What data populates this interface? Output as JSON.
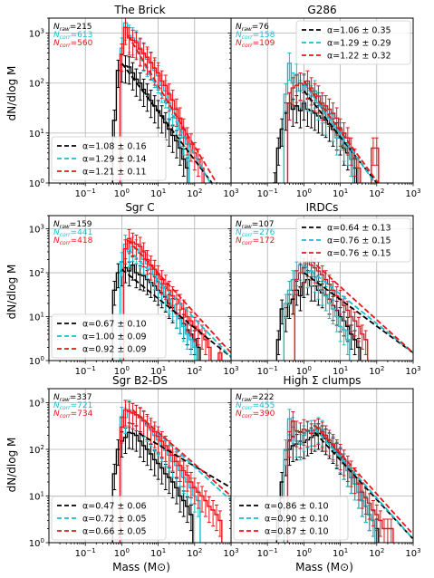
{
  "colors": {
    "raw": "#000000",
    "corr_cyan": "#17becf",
    "corr_red": "#e8151b",
    "grid": "#b0b0b0"
  },
  "labels": {
    "ylabel": "dN/dlog M",
    "xlabel": "Mass (M⊙)",
    "n_raw": "N",
    "raw_sub": "raw",
    "corr_sub": "corr"
  },
  "chart_data": [
    {
      "type": "line",
      "title": "The Brick",
      "xscale": "log",
      "yscale": "log",
      "xlim": [
        0.01,
        1000
      ],
      "ylim": [
        1,
        2000
      ],
      "grid": true,
      "counts": {
        "raw": "215",
        "corr_cyan": "613",
        "corr_red": "560"
      },
      "legend_position": "bottom-left",
      "legend": [
        "α=1.08 ± 0.16",
        "α=1.29 ± 0.14",
        "α=1.21 ± 0.11"
      ],
      "x": [
        0.5,
        0.63,
        0.8,
        1.0,
        1.26,
        1.6,
        2.0,
        2.5,
        3.2,
        4.0,
        5.0,
        6.3,
        8.0,
        10,
        12.6,
        16,
        20,
        25,
        32,
        40,
        50,
        63,
        80,
        100,
        126,
        160
      ],
      "series": [
        {
          "values": [
            null,
            18,
            180,
            230,
            220,
            210,
            160,
            120,
            100,
            75,
            60,
            45,
            35,
            28,
            22,
            16,
            12,
            9,
            7,
            5,
            3,
            2,
            null,
            null,
            null,
            null
          ]
        },
        {
          "values": [
            null,
            null,
            null,
            500,
            1600,
            900,
            800,
            700,
            500,
            380,
            300,
            250,
            180,
            140,
            90,
            70,
            40,
            30,
            20,
            12,
            8,
            6,
            null,
            null,
            null,
            null
          ]
        },
        {
          "values": [
            null,
            null,
            null,
            380,
            1300,
            800,
            720,
            650,
            480,
            400,
            330,
            260,
            200,
            160,
            110,
            90,
            60,
            45,
            30,
            20,
            12,
            8,
            6,
            4,
            3,
            2
          ]
        }
      ],
      "fits": [
        {
          "x": [
            1,
            300
          ],
          "y": [
            250,
            1
          ]
        },
        {
          "x": [
            1.5,
            270
          ],
          "y": [
            900,
            1
          ]
        },
        {
          "x": [
            1.5,
            400
          ],
          "y": [
            900,
            1
          ]
        }
      ]
    },
    {
      "type": "line",
      "title": "G286",
      "xscale": "log",
      "yscale": "log",
      "xlim": [
        0.01,
        1000
      ],
      "ylim": [
        1,
        2000
      ],
      "grid": true,
      "counts": {
        "raw": "76",
        "corr_cyan": "158",
        "corr_red": "109"
      },
      "legend_position": "top-right",
      "legend": [
        "α=1.06 ± 0.35",
        "α=1.29 ± 0.29",
        "α=1.22 ± 0.32"
      ],
      "x": [
        0.16,
        0.2,
        0.25,
        0.32,
        0.4,
        0.5,
        0.63,
        0.8,
        1.0,
        1.26,
        1.6,
        2.0,
        2.5,
        3.2,
        4.0,
        5.0,
        6.3,
        8.0,
        10,
        12.6,
        16,
        20,
        25,
        32,
        40,
        50,
        63,
        80,
        100,
        126,
        160
      ],
      "series": [
        {
          "values": [
            1,
            5,
            12,
            25,
            40,
            30,
            35,
            28,
            40,
            30,
            28,
            25,
            22,
            20,
            18,
            15,
            12,
            10,
            8,
            5,
            4,
            3,
            2,
            null,
            null,
            null,
            null,
            null,
            null,
            null,
            null
          ]
        },
        {
          "values": [
            null,
            null,
            null,
            60,
            250,
            100,
            150,
            70,
            90,
            60,
            55,
            70,
            40,
            35,
            20,
            30,
            15,
            8,
            10,
            6,
            5,
            3,
            null,
            null,
            null,
            null,
            null,
            null,
            null,
            null,
            null
          ]
        },
        {
          "values": [
            null,
            null,
            null,
            null,
            40,
            80,
            90,
            100,
            95,
            110,
            80,
            60,
            55,
            40,
            35,
            30,
            25,
            20,
            12,
            10,
            8,
            5,
            3,
            2,
            null,
            null,
            null,
            5,
            5,
            null,
            null
          ]
        }
      ],
      "fits": [
        {
          "x": [
            1,
            100
          ],
          "y": [
            70,
            1
          ]
        },
        {
          "x": [
            1,
            90
          ],
          "y": [
            100,
            1
          ]
        },
        {
          "x": [
            1,
            110
          ],
          "y": [
            110,
            1
          ]
        }
      ]
    },
    {
      "type": "line",
      "title": "Sgr C",
      "xscale": "log",
      "yscale": "log",
      "xlim": [
        0.01,
        1000
      ],
      "ylim": [
        1,
        2000
      ],
      "grid": true,
      "counts": {
        "raw": "159",
        "corr_cyan": "441",
        "corr_red": "418"
      },
      "legend_position": "bottom-left",
      "legend": [
        "α=0.67 ± 0.10",
        "α=1.00 ± 0.09",
        "α=0.92 ± 0.09"
      ],
      "x": [
        0.5,
        0.63,
        0.8,
        1.0,
        1.26,
        1.6,
        2.0,
        2.5,
        3.2,
        4.0,
        5.0,
        6.3,
        8.0,
        10,
        12.6,
        16,
        20,
        25,
        32,
        40,
        50,
        63,
        80,
        100,
        126,
        160,
        200,
        250,
        320,
        400,
        500
      ],
      "series": [
        {
          "values": [
            null,
            40,
            100,
            110,
            130,
            110,
            150,
            100,
            90,
            85,
            70,
            60,
            50,
            40,
            35,
            28,
            20,
            16,
            12,
            9,
            7,
            5,
            4,
            3,
            2,
            null,
            null,
            null,
            null,
            null,
            null
          ]
        },
        {
          "values": [
            null,
            null,
            null,
            180,
            450,
            300,
            400,
            350,
            280,
            200,
            160,
            120,
            90,
            60,
            45,
            30,
            25,
            18,
            12,
            9,
            6,
            4,
            3,
            2,
            null,
            null,
            null,
            null,
            null,
            null,
            null
          ]
        },
        {
          "values": [
            null,
            null,
            null,
            null,
            350,
            600,
            500,
            450,
            400,
            300,
            200,
            150,
            120,
            90,
            70,
            55,
            40,
            30,
            25,
            20,
            15,
            10,
            8,
            6,
            5,
            4,
            3,
            2,
            null,
            null,
            1.5
          ]
        }
      ],
      "fits": [
        {
          "x": [
            1,
            1000
          ],
          "y": [
            120,
            1.2
          ]
        },
        {
          "x": [
            1.5,
            1000
          ],
          "y": [
            350,
            1.2
          ]
        },
        {
          "x": [
            1.5,
            1000
          ],
          "y": [
            550,
            1.5
          ]
        }
      ]
    },
    {
      "type": "line",
      "title": "IRDCs",
      "xscale": "log",
      "yscale": "log",
      "xlim": [
        0.01,
        1000
      ],
      "ylim": [
        1,
        2000
      ],
      "grid": true,
      "counts": {
        "raw": "107",
        "corr_cyan": "276",
        "corr_red": "172"
      },
      "legend_position": "top-right",
      "legend": [
        "α=0.64 ± 0.13",
        "α=0.76 ± 0.15",
        "α=0.76 ± 0.15"
      ],
      "x": [
        0.2,
        0.25,
        0.32,
        0.4,
        0.5,
        0.63,
        0.8,
        1.0,
        1.26,
        1.6,
        2.0,
        2.5,
        3.2,
        4.0,
        5.0,
        6.3,
        8.0,
        10,
        12.6,
        16,
        20,
        25,
        32,
        40,
        50,
        63,
        80,
        100,
        126,
        160,
        200
      ],
      "series": [
        {
          "values": [
            3,
            15,
            10,
            20,
            25,
            40,
            30,
            60,
            70,
            50,
            50,
            40,
            35,
            30,
            25,
            18,
            14,
            10,
            8,
            6,
            4,
            3,
            2,
            null,
            null,
            null,
            null,
            null,
            null,
            null,
            null
          ]
        },
        {
          "values": [
            null,
            null,
            20,
            40,
            70,
            110,
            150,
            130,
            100,
            110,
            80,
            55,
            40,
            30,
            20,
            15,
            10,
            6,
            5,
            3,
            null,
            null,
            null,
            null,
            null,
            null,
            null,
            null,
            null,
            null,
            null
          ]
        },
        {
          "values": [
            null,
            null,
            null,
            null,
            null,
            70,
            100,
            130,
            180,
            150,
            130,
            110,
            90,
            70,
            55,
            40,
            30,
            25,
            18,
            14,
            10,
            8,
            6,
            4,
            3,
            null,
            null,
            null,
            null,
            null,
            null
          ]
        }
      ],
      "fits": [
        {
          "x": [
            1,
            1000
          ],
          "y": [
            100,
            1.5
          ]
        },
        {
          "x": [
            1,
            1000
          ],
          "y": [
            150,
            1.5
          ]
        },
        {
          "x": [
            1.5,
            1000
          ],
          "y": [
            200,
            1.5
          ]
        }
      ]
    },
    {
      "type": "line",
      "title": "Sgr B2-DS",
      "xscale": "log",
      "yscale": "log",
      "xlim": [
        0.01,
        1000
      ],
      "ylim": [
        1,
        2000
      ],
      "grid": true,
      "counts": {
        "raw": "337",
        "corr_cyan": "721",
        "corr_red": "734"
      },
      "legend_position": "bottom-left",
      "legend": [
        "α=0.47 ± 0.06",
        "α=0.72 ± 0.05",
        "α=0.66 ± 0.05"
      ],
      "x": [
        0.63,
        0.8,
        1.0,
        1.26,
        1.6,
        2.0,
        2.5,
        3.2,
        4.0,
        5.0,
        6.3,
        8.0,
        10,
        12.6,
        16,
        20,
        25,
        32,
        40,
        50,
        63,
        80,
        100,
        126,
        160,
        200,
        250,
        320,
        400,
        500
      ],
      "series": [
        {
          "values": [
            30,
            100,
            150,
            180,
            230,
            220,
            200,
            150,
            120,
            100,
            80,
            60,
            50,
            40,
            30,
            25,
            20,
            15,
            10,
            8,
            6,
            4,
            null,
            null,
            null,
            null,
            null,
            null,
            null,
            null
          ]
        },
        {
          "values": [
            null,
            null,
            500,
            480,
            700,
            600,
            550,
            500,
            400,
            320,
            260,
            200,
            160,
            120,
            95,
            75,
            55,
            45,
            35,
            25,
            20,
            15,
            10,
            8,
            null,
            null,
            null,
            null,
            null,
            null
          ]
        },
        {
          "values": [
            null,
            null,
            300,
            700,
            650,
            600,
            550,
            480,
            420,
            350,
            290,
            240,
            190,
            150,
            120,
            95,
            75,
            55,
            45,
            35,
            28,
            20,
            15,
            12,
            10,
            8,
            6,
            5,
            4,
            3
          ]
        }
      ],
      "fits": [
        {
          "x": [
            3,
            1000
          ],
          "y": [
            220,
            15
          ]
        },
        {
          "x": [
            2,
            1000
          ],
          "y": [
            700,
            8
          ]
        },
        {
          "x": [
            2,
            1000
          ],
          "y": [
            700,
            10
          ]
        }
      ]
    },
    {
      "type": "line",
      "title": "High Σ clumps",
      "xscale": "log",
      "yscale": "log",
      "xlim": [
        0.01,
        1000
      ],
      "ylim": [
        1,
        2000
      ],
      "grid": true,
      "counts": {
        "raw": "222",
        "corr_cyan": "455",
        "corr_red": "390"
      },
      "legend_position": "bottom-left",
      "legend": [
        "α=0.86 ± 0.10",
        "α=0.90 ± 0.10",
        "α=0.87 ± 0.10"
      ],
      "x": [
        0.2,
        0.25,
        0.32,
        0.4,
        0.5,
        0.63,
        0.8,
        1.0,
        1.26,
        1.6,
        2.0,
        2.5,
        3.2,
        4.0,
        5.0,
        6.3,
        8.0,
        10,
        12.6,
        16,
        20,
        25,
        32,
        40,
        50,
        63,
        80,
        100,
        126,
        160,
        200,
        250,
        320,
        400,
        500
      ],
      "series": [
        {
          "values": [
            3,
            20,
            60,
            100,
            120,
            130,
            150,
            140,
            160,
            180,
            200,
            220,
            200,
            170,
            140,
            110,
            85,
            65,
            50,
            35,
            25,
            18,
            12,
            8,
            6,
            4,
            3,
            2,
            null,
            null,
            null,
            null,
            null,
            null,
            null
          ]
        },
        {
          "values": [
            null,
            null,
            100,
            450,
            300,
            150,
            130,
            200,
            240,
            260,
            220,
            300,
            260,
            200,
            160,
            120,
            90,
            70,
            50,
            35,
            25,
            18,
            12,
            8,
            6,
            4,
            3,
            null,
            null,
            null,
            null,
            null,
            null,
            null,
            null
          ]
        },
        {
          "values": [
            null,
            null,
            null,
            150,
            400,
            250,
            230,
            270,
            250,
            220,
            260,
            280,
            240,
            200,
            160,
            130,
            100,
            80,
            60,
            45,
            35,
            25,
            18,
            12,
            9,
            7,
            5,
            4,
            3,
            2,
            2,
            2,
            null,
            null,
            null
          ]
        }
      ],
      "fits": [
        {
          "x": [
            2,
            1000
          ],
          "y": [
            230,
            1.2
          ]
        },
        {
          "x": [
            2,
            1000
          ],
          "y": [
            280,
            1.2
          ]
        },
        {
          "x": [
            2,
            1000
          ],
          "y": [
            330,
            1.5
          ]
        }
      ]
    }
  ]
}
